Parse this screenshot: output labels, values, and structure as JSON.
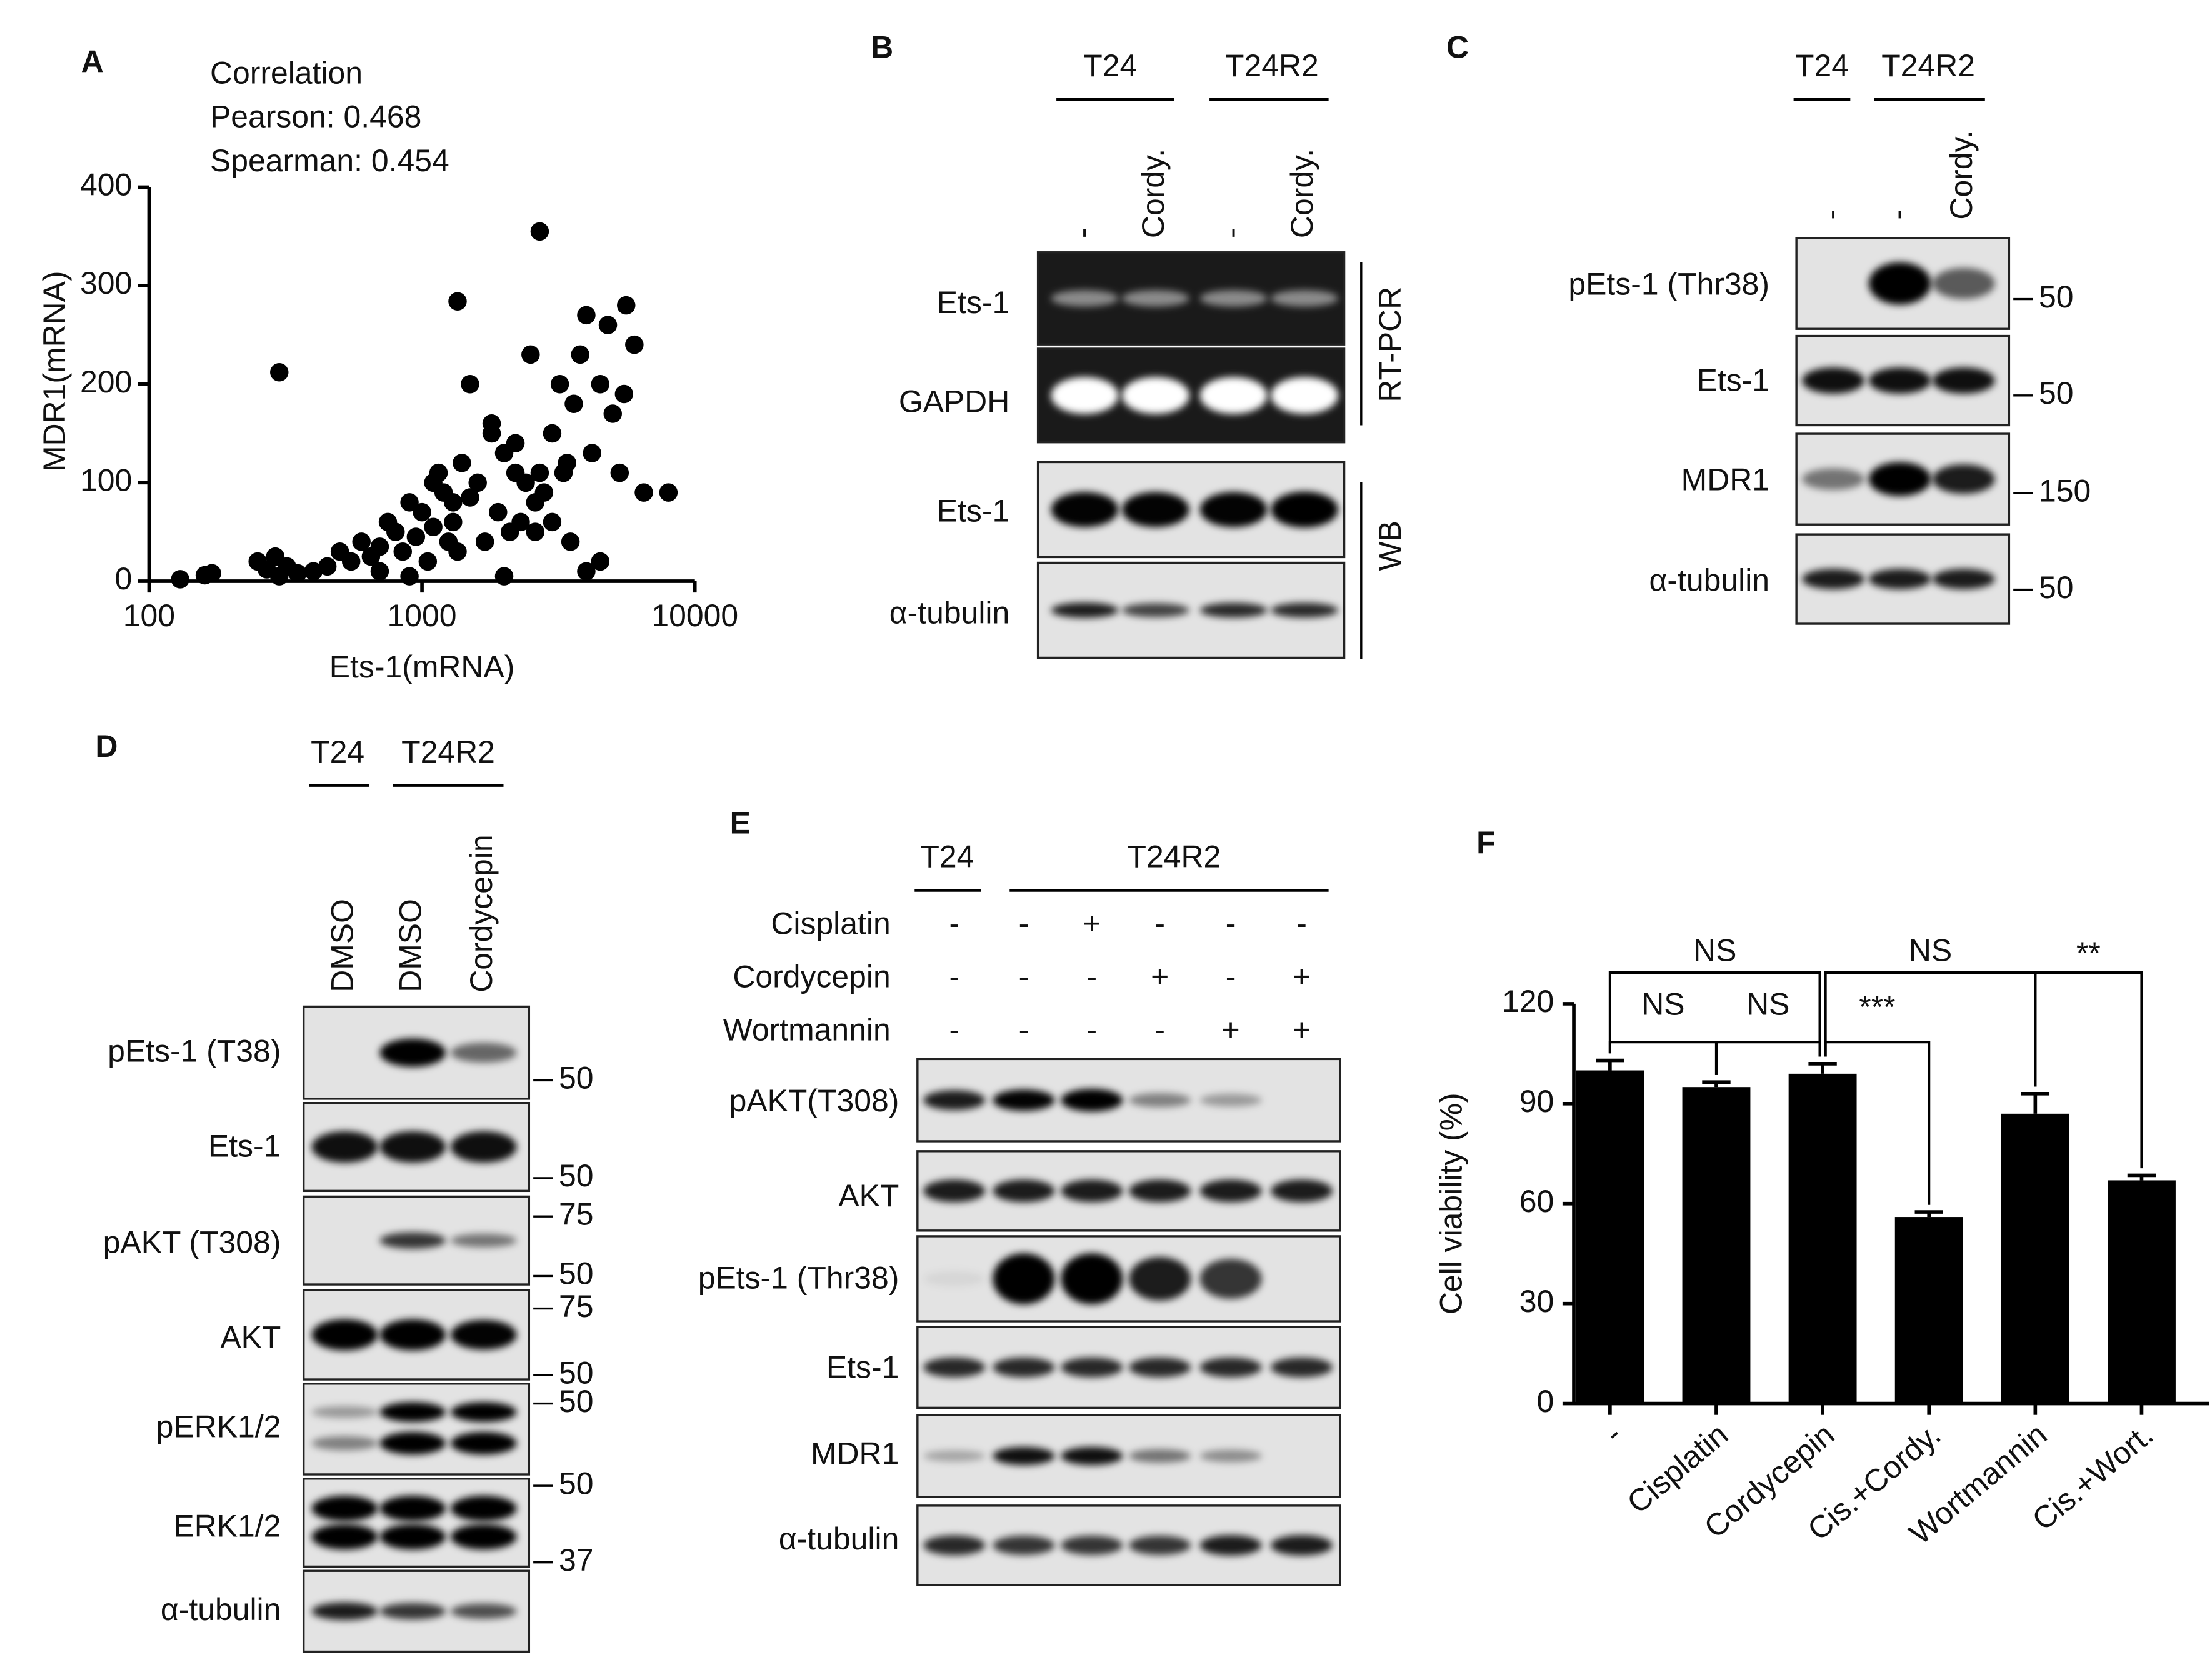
{
  "panel_labels": [
    "A",
    "B",
    "C",
    "D",
    "E",
    "F"
  ],
  "chart_data": [
    {
      "type": "scatter",
      "x_label": "Ets-1(mRNA)",
      "y_label": "MDR1(mRNA)",
      "annotations": [
        "Correlation",
        "Pearson: 0.468",
        "Spearman: 0.454"
      ],
      "x": [
        130,
        160,
        170,
        250,
        270,
        290,
        300,
        320,
        350,
        400,
        450,
        500,
        550,
        600,
        650,
        700,
        750,
        800,
        850,
        900,
        950,
        1000,
        1050,
        1100,
        1150,
        1200,
        1250,
        1300,
        1350,
        1400,
        1500,
        1600,
        1700,
        1800,
        1900,
        2000,
        2100,
        2200,
        2300,
        2400,
        2700,
        2600,
        2700,
        2800,
        3000,
        3200,
        3400,
        3600,
        3800,
        4000,
        4200,
        4500,
        4800,
        5000,
        5300,
        5600,
        6000,
        6500,
        8000,
        1350,
        1500,
        1800,
        2200,
        2500,
        3000,
        3500,
        4000,
        4500,
        2600,
        1300,
        300,
        900,
        700,
        1100,
        2000,
        3300,
        5500
      ],
      "values": [
        2,
        6,
        8,
        20,
        12,
        25,
        212,
        15,
        8,
        10,
        15,
        30,
        20,
        40,
        25,
        35,
        60,
        50,
        30,
        80,
        45,
        70,
        20,
        55,
        110,
        90,
        40,
        60,
        30,
        120,
        85,
        100,
        40,
        160,
        70,
        130,
        50,
        140,
        60,
        100,
        355,
        80,
        110,
        90,
        150,
        200,
        120,
        180,
        230,
        270,
        130,
        200,
        260,
        170,
        110,
        280,
        240,
        90,
        90,
        284,
        200,
        150,
        110,
        230,
        60,
        40,
        10,
        20,
        50,
        80,
        5,
        5,
        10,
        100,
        5,
        110,
        190
      ],
      "color": "#000000",
      "xscale": "log",
      "xlim": [
        100,
        10000
      ],
      "xticks": [
        100,
        1000,
        10000
      ],
      "ylim": [
        0,
        400
      ],
      "yticks": [
        0,
        100,
        200,
        300,
        400
      ]
    },
    {
      "type": "bar",
      "y_label": "Cell viability (%)",
      "categories": [
        "-",
        "Cisplatin",
        "Cordycepin",
        "Cis.+Cordy.",
        "Wortmannin",
        "Cis.+Wort."
      ],
      "values": [
        100,
        95,
        99,
        56,
        87,
        67
      ],
      "errors": [
        3,
        1.5,
        3,
        1.5,
        6,
        1.5
      ],
      "color": "#000000",
      "ylim": [
        0,
        120
      ],
      "yticks": [
        0,
        30,
        60,
        90,
        120
      ],
      "significance_labels": [
        "NS",
        "NS",
        "NS",
        "NS",
        "***",
        "**"
      ]
    }
  ],
  "panel_b": {
    "groups": [
      "T24",
      "T24R2"
    ],
    "lanes": [
      "-",
      "Cordy.",
      "-",
      "Cordy."
    ],
    "rows": [
      "Ets-1",
      "GAPDH",
      "Ets-1",
      "α-tubulin"
    ],
    "methods": [
      "RT-PCR",
      "WB"
    ]
  },
  "panel_c": {
    "groups": [
      "T24",
      "T24R2"
    ],
    "lanes": [
      "-",
      "-",
      "Cordy."
    ],
    "rows": [
      "pEts-1 (Thr38)",
      "Ets-1",
      "MDR1",
      "α-tubulin"
    ],
    "markers": [
      "50",
      "50",
      "150",
      "50"
    ]
  },
  "panel_d": {
    "groups": [
      "T24",
      "T24R2"
    ],
    "lanes": [
      "DMSO",
      "DMSO",
      "Cordycepin"
    ],
    "rows": [
      "pEts-1 (T38)",
      "Ets-1",
      "pAKT (T308)",
      "AKT",
      "pERK1/2",
      "ERK1/2",
      "α-tubulin"
    ],
    "markers": [
      "50",
      "50",
      "75",
      "50",
      "75",
      "50",
      "50",
      "50",
      "37"
    ]
  },
  "panel_e": {
    "groups": [
      "T24",
      "T24R2"
    ],
    "treatments": [
      {
        "name": "Cisplatin",
        "signs": [
          "-",
          "-",
          "+",
          "-",
          "-",
          "-"
        ]
      },
      {
        "name": "Cordycepin",
        "signs": [
          "-",
          "-",
          "-",
          "+",
          "-",
          "+"
        ]
      },
      {
        "name": "Wortmannin",
        "signs": [
          "-",
          "-",
          "-",
          "-",
          "+",
          "+"
        ]
      }
    ],
    "rows": [
      "pAKT(T308)",
      "AKT",
      "pEts-1 (Thr38)",
      "Ets-1",
      "MDR1",
      "α-tubulin"
    ]
  }
}
